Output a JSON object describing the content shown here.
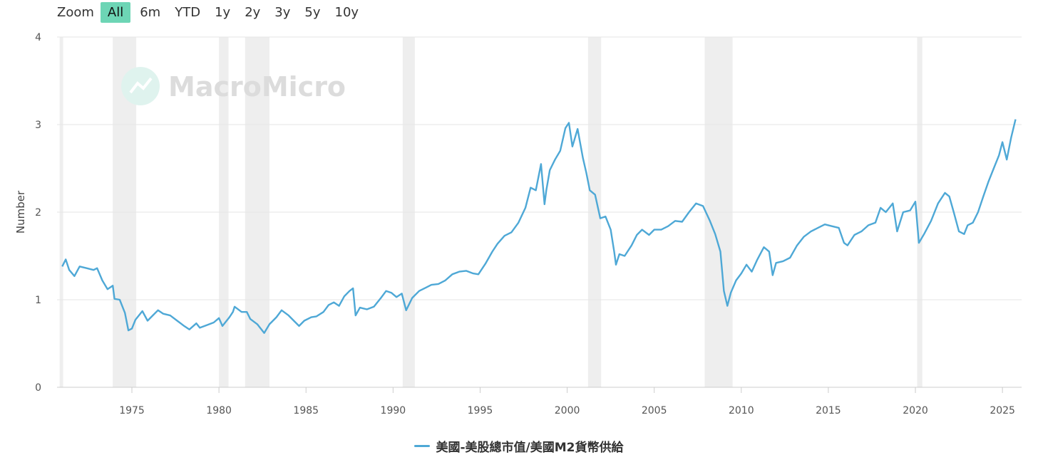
{
  "zoom": {
    "label": "Zoom",
    "buttons": [
      "All",
      "6m",
      "YTD",
      "1y",
      "2y",
      "3y",
      "5y",
      "10y"
    ],
    "active": "All",
    "active_color": "#6dd5b5"
  },
  "watermark": "MacroMicro",
  "chart_data": {
    "type": "line",
    "ylabel": "Number",
    "xlim": [
      1970.7,
      2026.1
    ],
    "ylim": [
      0,
      4
    ],
    "yticks": [
      0,
      1,
      2,
      3,
      4
    ],
    "xticks": [
      1975,
      1980,
      1985,
      1990,
      1995,
      2000,
      2005,
      2010,
      2015,
      2020,
      2025
    ],
    "grid": true,
    "legend_position": "bottom-center",
    "recession_bands": [
      [
        1970.85,
        1971.05
      ],
      [
        1973.9,
        1975.25
      ],
      [
        1980.0,
        1980.55
      ],
      [
        1981.5,
        1982.9
      ],
      [
        1990.55,
        1991.25
      ],
      [
        2001.2,
        2001.95
      ],
      [
        2007.9,
        2009.5
      ],
      [
        2020.1,
        2020.4
      ]
    ],
    "recession_color": "#eeeeee",
    "series": [
      {
        "name": "美國-美股總市值/美國M2貨幣供給",
        "color": "#4ea8d6",
        "points": [
          [
            1971.0,
            1.38
          ],
          [
            1971.2,
            1.46
          ],
          [
            1971.4,
            1.34
          ],
          [
            1971.7,
            1.27
          ],
          [
            1972.0,
            1.38
          ],
          [
            1972.4,
            1.36
          ],
          [
            1972.8,
            1.34
          ],
          [
            1973.0,
            1.36
          ],
          [
            1973.3,
            1.22
          ],
          [
            1973.6,
            1.12
          ],
          [
            1973.9,
            1.16
          ],
          [
            1974.0,
            1.01
          ],
          [
            1974.3,
            1.0
          ],
          [
            1974.6,
            0.85
          ],
          [
            1974.8,
            0.65
          ],
          [
            1975.0,
            0.67
          ],
          [
            1975.2,
            0.77
          ],
          [
            1975.6,
            0.87
          ],
          [
            1975.9,
            0.76
          ],
          [
            1976.2,
            0.82
          ],
          [
            1976.5,
            0.88
          ],
          [
            1976.8,
            0.84
          ],
          [
            1977.2,
            0.82
          ],
          [
            1977.6,
            0.76
          ],
          [
            1978.0,
            0.7
          ],
          [
            1978.3,
            0.66
          ],
          [
            1978.7,
            0.73
          ],
          [
            1978.9,
            0.68
          ],
          [
            1979.3,
            0.71
          ],
          [
            1979.7,
            0.74
          ],
          [
            1980.0,
            0.79
          ],
          [
            1980.2,
            0.7
          ],
          [
            1980.6,
            0.8
          ],
          [
            1980.8,
            0.86
          ],
          [
            1980.9,
            0.92
          ],
          [
            1981.3,
            0.86
          ],
          [
            1981.6,
            0.86
          ],
          [
            1981.8,
            0.78
          ],
          [
            1982.2,
            0.72
          ],
          [
            1982.6,
            0.62
          ],
          [
            1982.9,
            0.72
          ],
          [
            1983.3,
            0.8
          ],
          [
            1983.6,
            0.88
          ],
          [
            1984.0,
            0.82
          ],
          [
            1984.3,
            0.76
          ],
          [
            1984.6,
            0.7
          ],
          [
            1984.9,
            0.76
          ],
          [
            1985.3,
            0.8
          ],
          [
            1985.6,
            0.81
          ],
          [
            1986.0,
            0.86
          ],
          [
            1986.3,
            0.94
          ],
          [
            1986.6,
            0.97
          ],
          [
            1986.9,
            0.93
          ],
          [
            1987.2,
            1.04
          ],
          [
            1987.5,
            1.1
          ],
          [
            1987.7,
            1.13
          ],
          [
            1987.85,
            0.82
          ],
          [
            1988.1,
            0.91
          ],
          [
            1988.5,
            0.89
          ],
          [
            1988.9,
            0.92
          ],
          [
            1989.3,
            1.02
          ],
          [
            1989.6,
            1.1
          ],
          [
            1989.9,
            1.08
          ],
          [
            1990.2,
            1.03
          ],
          [
            1990.5,
            1.07
          ],
          [
            1990.75,
            0.88
          ],
          [
            1991.1,
            1.02
          ],
          [
            1991.5,
            1.1
          ],
          [
            1991.9,
            1.14
          ],
          [
            1992.2,
            1.17
          ],
          [
            1992.6,
            1.18
          ],
          [
            1993.0,
            1.22
          ],
          [
            1993.4,
            1.29
          ],
          [
            1993.8,
            1.32
          ],
          [
            1994.2,
            1.33
          ],
          [
            1994.6,
            1.3
          ],
          [
            1994.9,
            1.29
          ],
          [
            1995.3,
            1.41
          ],
          [
            1995.7,
            1.55
          ],
          [
            1996.0,
            1.64
          ],
          [
            1996.4,
            1.73
          ],
          [
            1996.8,
            1.77
          ],
          [
            1997.2,
            1.88
          ],
          [
            1997.6,
            2.05
          ],
          [
            1997.9,
            2.28
          ],
          [
            1998.2,
            2.25
          ],
          [
            1998.5,
            2.55
          ],
          [
            1998.8,
            2.25
          ],
          [
            1998.7,
            2.09
          ],
          [
            1999.0,
            2.48
          ],
          [
            1999.3,
            2.6
          ],
          [
            1999.6,
            2.7
          ],
          [
            1999.9,
            2.96
          ],
          [
            2000.1,
            3.02
          ],
          [
            2000.3,
            2.75
          ],
          [
            2000.6,
            2.95
          ],
          [
            2000.9,
            2.62
          ],
          [
            2001.1,
            2.45
          ],
          [
            2001.3,
            2.25
          ],
          [
            2001.6,
            2.2
          ],
          [
            2001.9,
            1.93
          ],
          [
            2002.2,
            1.95
          ],
          [
            2002.5,
            1.8
          ],
          [
            2002.7,
            1.55
          ],
          [
            2002.8,
            1.4
          ],
          [
            2003.0,
            1.52
          ],
          [
            2003.3,
            1.5
          ],
          [
            2003.7,
            1.62
          ],
          [
            2004.0,
            1.74
          ],
          [
            2004.3,
            1.8
          ],
          [
            2004.7,
            1.74
          ],
          [
            2005.0,
            1.8
          ],
          [
            2005.4,
            1.8
          ],
          [
            2005.8,
            1.84
          ],
          [
            2006.2,
            1.9
          ],
          [
            2006.6,
            1.89
          ],
          [
            2007.0,
            2.0
          ],
          [
            2007.4,
            2.1
          ],
          [
            2007.8,
            2.07
          ],
          [
            2008.2,
            1.9
          ],
          [
            2008.5,
            1.75
          ],
          [
            2008.8,
            1.55
          ],
          [
            2009.0,
            1.1
          ],
          [
            2009.2,
            0.93
          ],
          [
            2009.4,
            1.08
          ],
          [
            2009.7,
            1.22
          ],
          [
            2010.0,
            1.3
          ],
          [
            2010.3,
            1.4
          ],
          [
            2010.6,
            1.32
          ],
          [
            2010.9,
            1.45
          ],
          [
            2011.3,
            1.6
          ],
          [
            2011.6,
            1.55
          ],
          [
            2011.8,
            1.28
          ],
          [
            2012.0,
            1.42
          ],
          [
            2012.4,
            1.44
          ],
          [
            2012.8,
            1.48
          ],
          [
            2013.2,
            1.62
          ],
          [
            2013.6,
            1.72
          ],
          [
            2014.0,
            1.78
          ],
          [
            2014.4,
            1.82
          ],
          [
            2014.8,
            1.86
          ],
          [
            2015.2,
            1.84
          ],
          [
            2015.6,
            1.82
          ],
          [
            2015.9,
            1.65
          ],
          [
            2016.1,
            1.62
          ],
          [
            2016.5,
            1.74
          ],
          [
            2016.9,
            1.78
          ],
          [
            2017.3,
            1.85
          ],
          [
            2017.7,
            1.88
          ],
          [
            2018.0,
            2.05
          ],
          [
            2018.3,
            2.0
          ],
          [
            2018.7,
            2.1
          ],
          [
            2018.95,
            1.78
          ],
          [
            2019.3,
            2.0
          ],
          [
            2019.7,
            2.02
          ],
          [
            2020.0,
            2.12
          ],
          [
            2020.2,
            1.65
          ],
          [
            2020.5,
            1.75
          ],
          [
            2020.9,
            1.9
          ],
          [
            2021.3,
            2.1
          ],
          [
            2021.7,
            2.22
          ],
          [
            2021.95,
            2.18
          ],
          [
            2022.2,
            2.0
          ],
          [
            2022.5,
            1.78
          ],
          [
            2022.8,
            1.75
          ],
          [
            2023.0,
            1.85
          ],
          [
            2023.3,
            1.88
          ],
          [
            2023.6,
            2.0
          ],
          [
            2023.9,
            2.18
          ],
          [
            2024.2,
            2.35
          ],
          [
            2024.5,
            2.5
          ],
          [
            2024.8,
            2.65
          ],
          [
            2025.0,
            2.8
          ],
          [
            2025.25,
            2.6
          ],
          [
            2025.5,
            2.85
          ],
          [
            2025.75,
            3.06
          ]
        ]
      }
    ]
  }
}
